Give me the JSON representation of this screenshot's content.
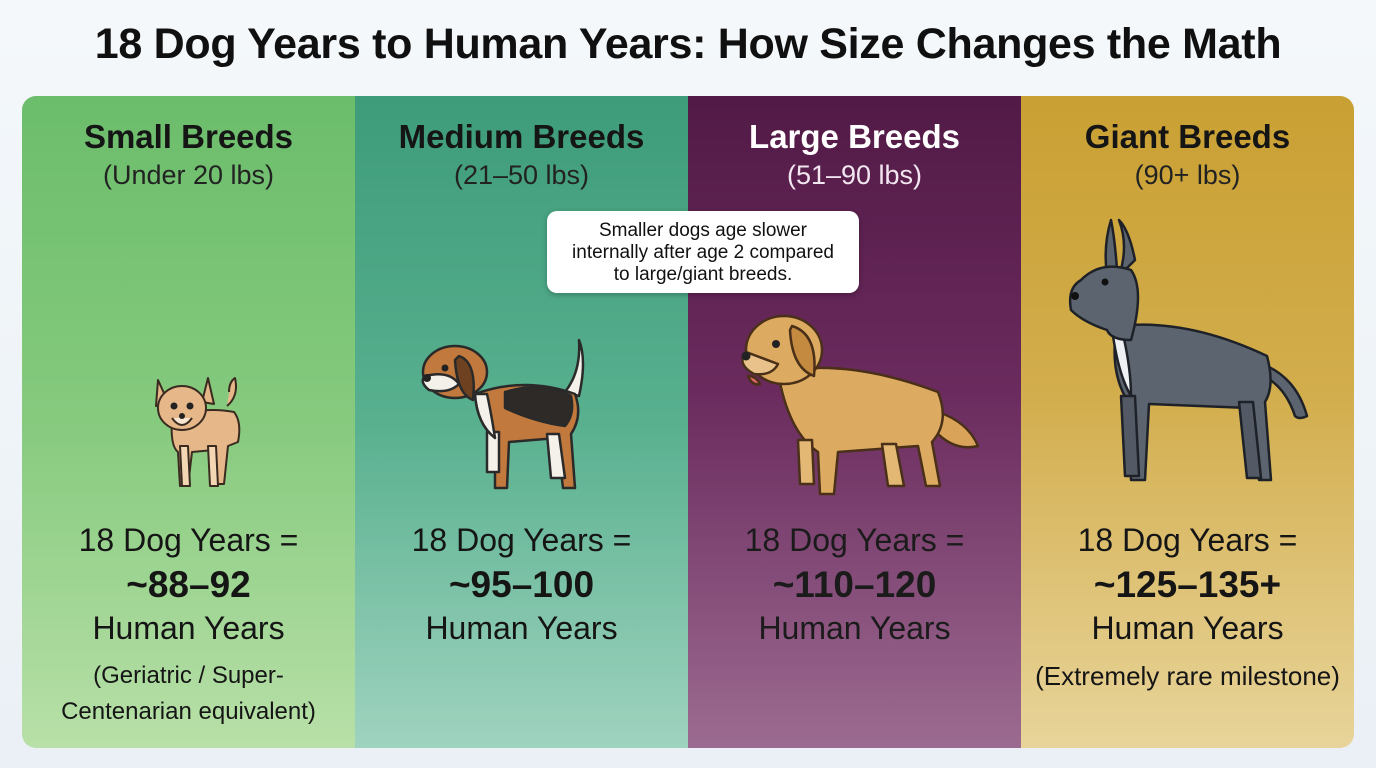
{
  "title": "18 Dog Years to Human Years: How Size Changes the Math",
  "callout": {
    "lines": [
      "Smaller dogs age slower",
      "internally after age 2 compared",
      "to large/giant breeds."
    ]
  },
  "panels": [
    {
      "name": "Small Breeds",
      "weight": "(Under 20 lbs)",
      "equation": "18 Dog Years =",
      "range": "~88–92",
      "unit": "Human Years",
      "note": "(Geriatric / Super-Centenarian equivalent)",
      "dog_icon": "chihuahua-icon",
      "color": "#6bbd6b"
    },
    {
      "name": "Medium Breeds",
      "weight": "(21–50 lbs)",
      "equation": "18 Dog Years =",
      "range": "~95–100",
      "unit": "Human Years",
      "note": "",
      "dog_icon": "beagle-icon",
      "color": "#3e9c7a"
    },
    {
      "name": "Large Breeds",
      "weight": "(51–90 lbs)",
      "equation": "18 Dog Years =",
      "range": "~110–120",
      "unit": "Human Years",
      "note": "",
      "dog_icon": "golden-retriever-icon",
      "color": "#5a1f4e"
    },
    {
      "name": "Giant Breeds",
      "weight": "(90+ lbs)",
      "equation": "18 Dog Years =",
      "range": "~125–135+",
      "unit": "Human Years",
      "note": "(Extremely rare milestone)",
      "dog_icon": "great-dane-icon",
      "color": "#c9a033"
    }
  ]
}
